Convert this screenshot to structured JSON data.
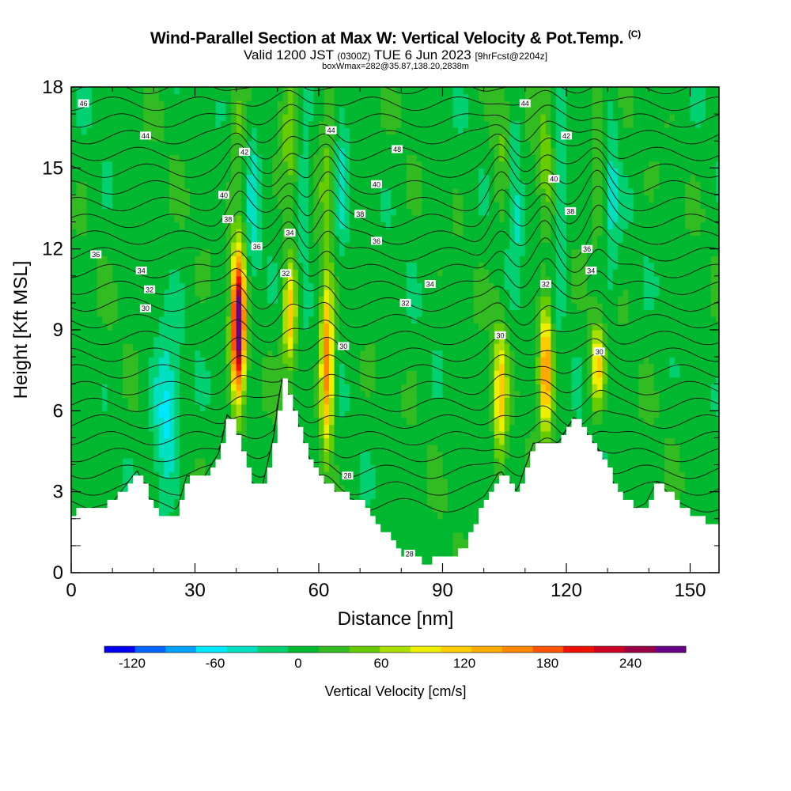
{
  "title": {
    "main": "Wind-Parallel Section at Max W: Vertical Velocity & Pot.Temp.",
    "copyright": "(C)",
    "valid_prefix": "Valid 1200 JST",
    "valid_utc": "(0300Z)",
    "valid_date": "TUE 6 Jun 2023",
    "forecast": "[9hrFcst@2204z]",
    "box_info": "boxWmax=282@35.87,138.20,2838m"
  },
  "chart_data": {
    "type": "heatmap",
    "title": "Wind-Parallel Section at Max W: Vertical Velocity & Pot.Temp.",
    "xlabel": "Distance [nm]",
    "ylabel": "Height [Kft MSL]",
    "xlim": [
      0,
      157
    ],
    "ylim": [
      0,
      18
    ],
    "x_ticks": [
      0,
      30,
      60,
      90,
      120,
      150
    ],
    "y_ticks": [
      0,
      3,
      6,
      9,
      12,
      15,
      18
    ],
    "colorbar": {
      "label": "Vertical Velocity [cm/s]",
      "ticks": [
        -120,
        -60,
        0,
        60,
        120,
        180,
        240
      ],
      "min": -140,
      "max": 280,
      "colors": [
        "#0000ee",
        "#0066ff",
        "#00a2ff",
        "#00e8ff",
        "#00e0c0",
        "#00d070",
        "#00b830",
        "#33bb22",
        "#66cc00",
        "#aadd00",
        "#eeee00",
        "#ffcc00",
        "#ffaa00",
        "#ff8800",
        "#ff5500",
        "#ee1100",
        "#cc0022",
        "#990044",
        "#660088"
      ]
    },
    "terrain_kft": [
      [
        0,
        2.2
      ],
      [
        10,
        2.6
      ],
      [
        16,
        3.8
      ],
      [
        21,
        2.0
      ],
      [
        25,
        2.0
      ],
      [
        28,
        3.6
      ],
      [
        32,
        3.5
      ],
      [
        36,
        4.5
      ],
      [
        38,
        6.0
      ],
      [
        40,
        5.0
      ],
      [
        43,
        3.5
      ],
      [
        46,
        3.0
      ],
      [
        49,
        5.0
      ],
      [
        51,
        7.2
      ],
      [
        54,
        6.0
      ],
      [
        57,
        4.5
      ],
      [
        60,
        3.5
      ],
      [
        64,
        3.0
      ],
      [
        70,
        2.6
      ],
      [
        75,
        1.6
      ],
      [
        80,
        0.6
      ],
      [
        85,
        0.4
      ],
      [
        90,
        0.5
      ],
      [
        95,
        0.9
      ],
      [
        100,
        2.8
      ],
      [
        104,
        3.8
      ],
      [
        108,
        3.0
      ],
      [
        112,
        4.8
      ],
      [
        118,
        4.8
      ],
      [
        122,
        5.8
      ],
      [
        128,
        4.5
      ],
      [
        133,
        2.8
      ],
      [
        138,
        2.2
      ],
      [
        142,
        3.4
      ],
      [
        148,
        2.4
      ],
      [
        152,
        2.0
      ],
      [
        157,
        1.6
      ]
    ],
    "updrafts": [
      {
        "x": 40.5,
        "z_bottom": 6.0,
        "z_top": 12.3,
        "w_max": 282
      },
      {
        "x": 53.0,
        "z_bottom": 7.2,
        "z_top": 12.0,
        "w_max": 120
      },
      {
        "x": 62.0,
        "z_bottom": 4.0,
        "z_top": 11.5,
        "w_max": 160
      },
      {
        "x": 104.0,
        "z_bottom": 3.5,
        "z_top": 9.5,
        "w_max": 110
      },
      {
        "x": 115.0,
        "z_bottom": 4.8,
        "z_top": 10.5,
        "w_max": 150
      },
      {
        "x": 127.5,
        "z_bottom": 5.8,
        "z_top": 9.5,
        "w_max": 110
      }
    ],
    "downdrafts": [
      {
        "x": 23.0,
        "z_bottom": 3.0,
        "z_top": 8.5,
        "w_min": -70
      }
    ],
    "theta_contour_labels": [
      {
        "value": "46",
        "x": 3,
        "z": 17.4
      },
      {
        "value": "44",
        "x": 18,
        "z": 16.2
      },
      {
        "value": "42",
        "x": 42,
        "z": 15.6
      },
      {
        "value": "44",
        "x": 63,
        "z": 16.4
      },
      {
        "value": "48",
        "x": 79,
        "z": 15.7
      },
      {
        "value": "44",
        "x": 110,
        "z": 17.4
      },
      {
        "value": "42",
        "x": 120,
        "z": 16.2
      },
      {
        "value": "40",
        "x": 37,
        "z": 14.0
      },
      {
        "value": "40",
        "x": 74,
        "z": 14.4
      },
      {
        "value": "40",
        "x": 117,
        "z": 14.6
      },
      {
        "value": "38",
        "x": 38,
        "z": 13.1
      },
      {
        "value": "38",
        "x": 70,
        "z": 13.3
      },
      {
        "value": "38",
        "x": 121,
        "z": 13.4
      },
      {
        "value": "36",
        "x": 6,
        "z": 11.8
      },
      {
        "value": "36",
        "x": 45,
        "z": 12.1
      },
      {
        "value": "36",
        "x": 74,
        "z": 12.3
      },
      {
        "value": "36",
        "x": 125,
        "z": 12.0
      },
      {
        "value": "34",
        "x": 17,
        "z": 11.2
      },
      {
        "value": "34",
        "x": 53,
        "z": 12.6
      },
      {
        "value": "34",
        "x": 87,
        "z": 10.7
      },
      {
        "value": "34",
        "x": 126,
        "z": 11.2
      },
      {
        "value": "32",
        "x": 19,
        "z": 10.5
      },
      {
        "value": "32",
        "x": 52,
        "z": 11.1
      },
      {
        "value": "32",
        "x": 81,
        "z": 10.0
      },
      {
        "value": "32",
        "x": 115,
        "z": 10.7
      },
      {
        "value": "30",
        "x": 18,
        "z": 9.8
      },
      {
        "value": "30",
        "x": 66,
        "z": 8.4
      },
      {
        "value": "30",
        "x": 104,
        "z": 8.8
      },
      {
        "value": "30",
        "x": 128,
        "z": 8.2
      },
      {
        "value": "28",
        "x": 67,
        "z": 3.6
      },
      {
        "value": "28",
        "x": 82,
        "z": 0.7
      }
    ],
    "grid": false
  }
}
